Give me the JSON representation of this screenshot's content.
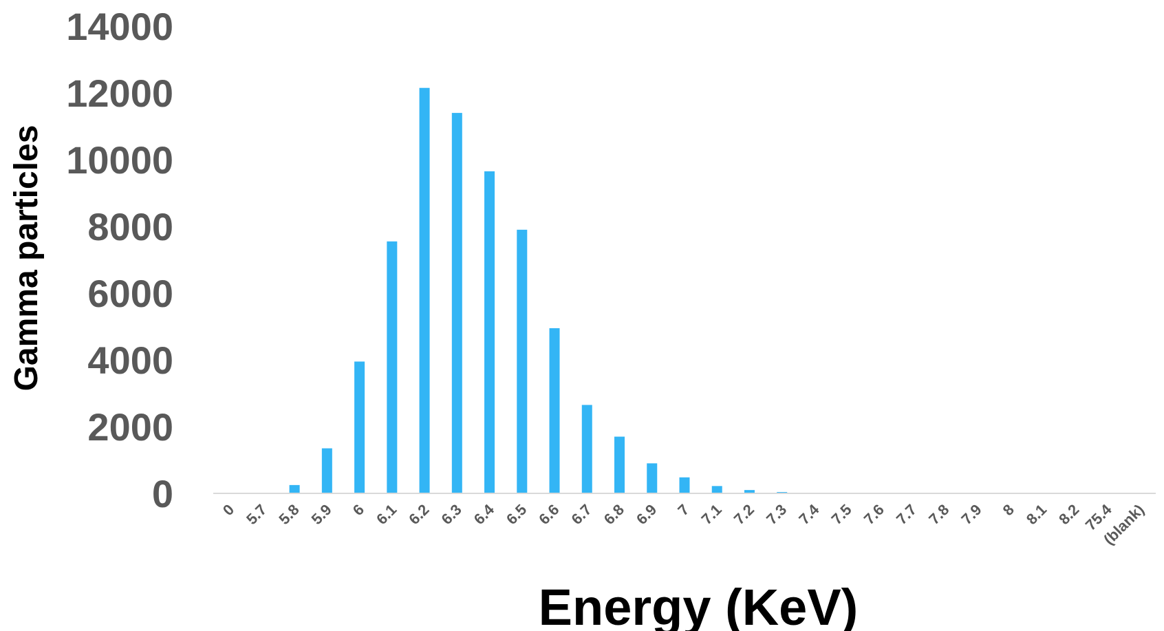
{
  "chart_data": {
    "type": "bar",
    "title": "",
    "xlabel": "Energy (KeV)",
    "ylabel": "Gamma particles",
    "ylim": [
      0,
      14000
    ],
    "yticks": [
      "0",
      "2000",
      "4000",
      "6000",
      "8000",
      "10000",
      "12000",
      "14000"
    ],
    "categories": [
      "0",
      "5.7",
      "5.8",
      "5.9",
      "6",
      "6.1",
      "6.2",
      "6.3",
      "6.4",
      "6.5",
      "6.6",
      "6.7",
      "6.8",
      "6.9",
      "7",
      "7.1",
      "7.2",
      "7.3",
      "7.4",
      "7.5",
      "7.6",
      "7.7",
      "7.8",
      "7.9",
      "8",
      "8.1",
      "8.2",
      "75.4",
      "(blank)"
    ],
    "values": [
      0,
      0,
      250,
      1350,
      3950,
      7550,
      12150,
      11400,
      9650,
      7900,
      4950,
      2650,
      1700,
      900,
      480,
      220,
      100,
      40,
      20,
      10,
      5,
      0,
      0,
      0,
      0,
      0,
      0,
      0,
      0
    ],
    "grid": false,
    "legend": "none",
    "colors": {
      "bar": "#33b5f5",
      "tick_text": "#595959",
      "axis_title": "#000000",
      "baseline": "#d9d9d9"
    }
  }
}
